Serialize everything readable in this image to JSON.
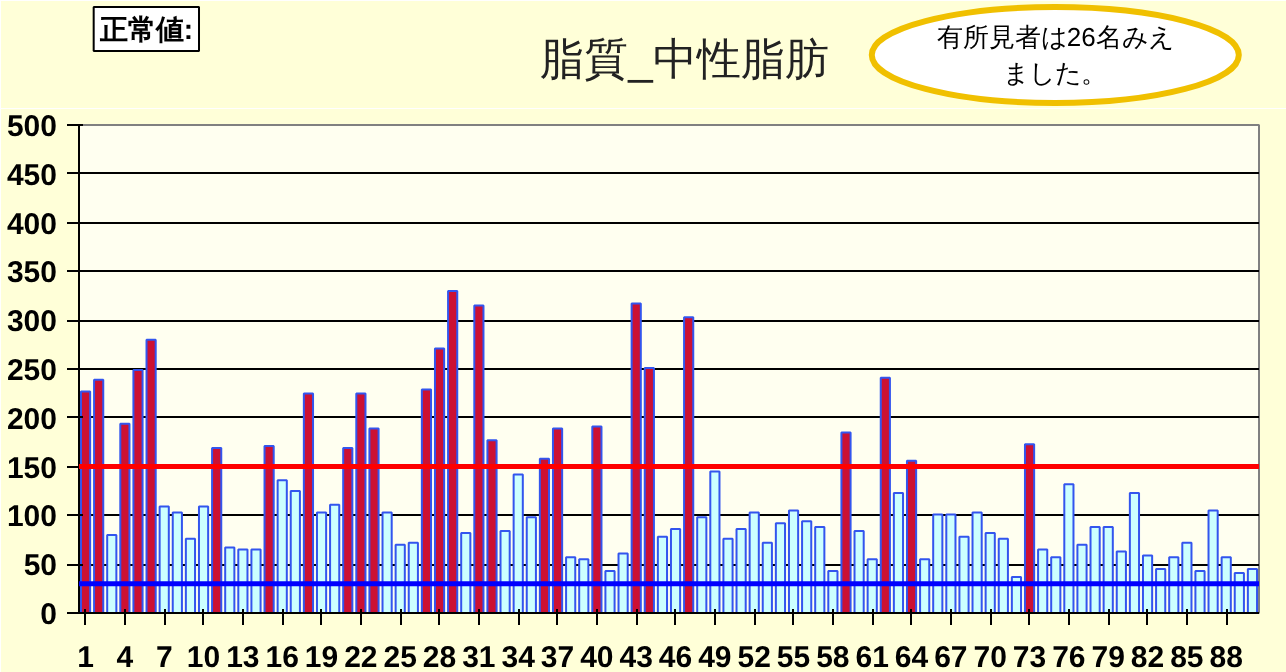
{
  "chart_data": {
    "type": "bar",
    "title": "脂質_中性脂肪",
    "categories": [
      "1",
      null,
      null,
      "4",
      null,
      null,
      "7",
      null,
      null,
      "10",
      null,
      null,
      "13",
      null,
      null,
      "16",
      null,
      null,
      "19",
      null,
      null,
      "22",
      null,
      null,
      "25",
      null,
      null,
      "28",
      null,
      null,
      "31",
      null,
      null,
      "34",
      null,
      null,
      "37",
      null,
      null,
      "40",
      null,
      null,
      "43",
      null,
      null,
      "46",
      null,
      null,
      "49",
      null,
      null,
      "52",
      null,
      null,
      "55",
      null,
      null,
      "58",
      null,
      null,
      "61",
      null,
      null,
      "64",
      null,
      null,
      "67",
      null,
      null,
      "70",
      null,
      null,
      "73",
      null,
      null,
      "76",
      null,
      null,
      "79",
      null,
      null,
      "82",
      null,
      null,
      "85",
      null,
      null,
      "88",
      null,
      null
    ],
    "values": [
      227,
      239,
      80,
      194,
      249,
      280,
      109,
      103,
      76,
      109,
      169,
      67,
      65,
      65,
      171,
      136,
      125,
      225,
      103,
      111,
      169,
      225,
      189,
      103,
      70,
      72,
      229,
      271,
      330,
      82,
      315,
      177,
      84,
      142,
      98,
      158,
      189,
      57,
      55,
      191,
      43,
      61,
      317,
      251,
      78,
      86,
      303,
      98,
      145,
      76,
      86,
      103,
      72,
      92,
      105,
      94,
      88,
      43,
      185,
      84,
      55,
      241,
      123,
      156,
      55,
      101,
      101,
      78,
      103,
      82,
      76,
      37,
      173,
      65,
      57,
      132,
      70,
      88,
      88,
      63,
      123,
      59,
      45,
      57,
      72,
      43,
      105,
      57,
      41,
      45
    ],
    "colors": [
      "#cc1133",
      "#cc1133",
      "#ccffff",
      "#cc1133",
      "#cc1133",
      "#cc1133",
      "#ccffff",
      "#ccffff",
      "#ccffff",
      "#ccffff",
      "#cc1133",
      "#ccffff",
      "#ccffff",
      "#ccffff",
      "#cc1133",
      "#ccffff",
      "#ccffff",
      "#cc1133",
      "#ccffff",
      "#ccffff",
      "#cc1133",
      "#cc1133",
      "#cc1133",
      "#ccffff",
      "#ccffff",
      "#ccffff",
      "#cc1133",
      "#cc1133",
      "#cc1133",
      "#ccffff",
      "#cc1133",
      "#cc1133",
      "#ccffff",
      "#ccffff",
      "#ccffff",
      "#cc1133",
      "#cc1133",
      "#ccffff",
      "#ccffff",
      "#cc1133",
      "#ccffff",
      "#ccffff",
      "#cc1133",
      "#cc1133",
      "#ccffff",
      "#ccffff",
      "#cc1133",
      "#ccffff",
      "#ccffff",
      "#ccffff",
      "#ccffff",
      "#ccffff",
      "#ccffff",
      "#ccffff",
      "#ccffff",
      "#ccffff",
      "#ccffff",
      "#ccffff",
      "#cc1133",
      "#ccffff",
      "#ccffff",
      "#cc1133",
      "#ccffff",
      "#cc1133",
      "#ccffff",
      "#ccffff",
      "#ccffff",
      "#ccffff",
      "#ccffff",
      "#ccffff",
      "#ccffff",
      "#ccffff",
      "#cc1133",
      "#ccffff",
      "#ccffff",
      "#ccffff",
      "#ccffff",
      "#ccffff",
      "#ccffff",
      "#ccffff",
      "#ccffff",
      "#ccffff",
      "#ccffff",
      "#ccffff",
      "#ccffff",
      "#ccffff",
      "#ccffff",
      "#ccffff",
      "#ccffff",
      "#ccffff"
    ],
    "ylim": [
      0,
      500
    ],
    "yticks": [
      0,
      50,
      100,
      150,
      200,
      250,
      300,
      350,
      400,
      450,
      500
    ],
    "grid": "y",
    "ref_lines": [
      {
        "axis": "y",
        "value": 150,
        "color": "#ff0000"
      },
      {
        "axis": "y",
        "value": 30,
        "color": "#0000ff"
      }
    ],
    "annotations": [
      "正常値:",
      "有所見者は26名みえました。"
    ]
  }
}
